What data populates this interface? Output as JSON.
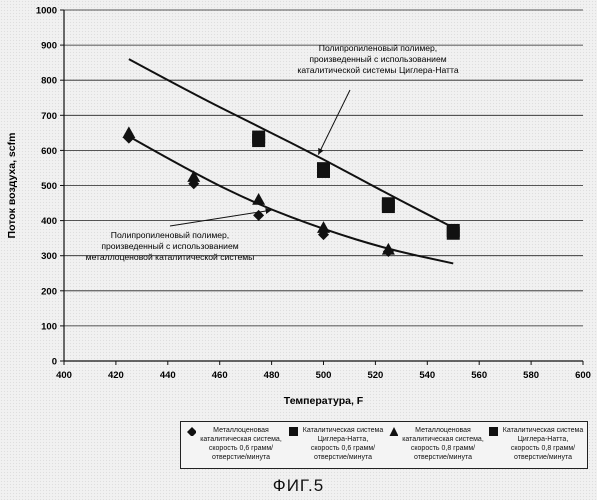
{
  "chart_data": {
    "type": "scatter",
    "xlabel": "Температура, F",
    "ylabel": "Поток воздуха, scfm",
    "xlim": [
      400,
      600
    ],
    "ylim": [
      0,
      1000
    ],
    "x_ticks": [
      400,
      420,
      440,
      460,
      480,
      500,
      520,
      540,
      560,
      580,
      600
    ],
    "y_ticks": [
      0,
      100,
      200,
      300,
      400,
      500,
      600,
      700,
      800,
      900,
      1000
    ],
    "grid": "horizontal",
    "series": [
      {
        "name": "Металлоценовая каталитическая система, скорость 0,6 грамм/отверстие/минута",
        "marker": "diamond",
        "points": [
          [
            425,
            635
          ],
          [
            450,
            505
          ],
          [
            475,
            415
          ],
          [
            500,
            360
          ],
          [
            525,
            312
          ]
        ]
      },
      {
        "name": "Каталитическая система Циглера-Натта, скорость 0,6 грамм/отверстие/минута",
        "marker": "square",
        "points": [
          [
            475,
            638
          ],
          [
            500,
            548
          ],
          [
            525,
            448
          ],
          [
            550,
            372
          ]
        ]
      },
      {
        "name": "Металлоценовая каталитическая система, скорость 0,8 грамм/отверстие/минута",
        "marker": "triangle",
        "points": [
          [
            425,
            650
          ],
          [
            450,
            525
          ],
          [
            475,
            460
          ],
          [
            500,
            380
          ],
          [
            525,
            318
          ]
        ]
      },
      {
        "name": "Каталитическая система Циглера-Натта, скорость 0,8 грамм/отверстие/минута",
        "marker": "square",
        "points": [
          [
            475,
            628
          ],
          [
            500,
            540
          ],
          [
            525,
            440
          ],
          [
            550,
            364
          ]
        ]
      }
    ],
    "trendlines": [
      {
        "name": "metallocene-trend",
        "points": [
          [
            425,
            640
          ],
          [
            450,
            535
          ],
          [
            475,
            445
          ],
          [
            500,
            375
          ],
          [
            525,
            318
          ],
          [
            550,
            278
          ]
        ]
      },
      {
        "name": "ziegler-natta-trend",
        "points": [
          [
            425,
            860
          ],
          [
            450,
            760
          ],
          [
            475,
            668
          ],
          [
            500,
            575
          ],
          [
            525,
            475
          ],
          [
            550,
            380
          ]
        ]
      }
    ],
    "annotations": [
      {
        "text": [
          "Полипропиленовый полимер,",
          "произведенный с использованием",
          "каталитической системы Циглера-Натта"
        ],
        "arrow_to": [
          498,
          588
        ]
      },
      {
        "text": [
          "Полипропиленовый полимер,",
          "произведенный с использованием",
          "металлоценовой каталитической системы"
        ],
        "arrow_to": [
          480,
          430
        ]
      }
    ]
  },
  "legend": [
    {
      "lines": [
        "Металлоценовая",
        "каталитическая система,",
        "скорость 0,6 грамм/",
        "отверстие/минута"
      ]
    },
    {
      "lines": [
        "Каталитическая система",
        "Циглера-Натта,",
        "скорость 0,6 грамм/",
        "отверстие/минута"
      ]
    },
    {
      "lines": [
        "Металлоценовая",
        "каталитическая система,",
        "скорость 0,8 грамм/",
        "отверстие/минута"
      ]
    },
    {
      "lines": [
        "Каталитическая система",
        "Циглера-Натта,",
        "скорость 0,8 грамм/",
        "отверстие/минута"
      ]
    }
  ],
  "caption": "ФИГ.5"
}
